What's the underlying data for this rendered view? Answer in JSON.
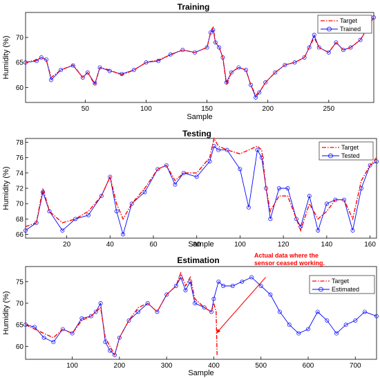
{
  "figure": {
    "description_free": true
  },
  "chart_data": [
    {
      "type": "line",
      "title": "Training",
      "xlabel": "Sample",
      "ylabel": "Humidity (%)",
      "xlim": [
        1,
        287
      ],
      "ylim": [
        57,
        75
      ],
      "xticks": [
        50,
        100,
        150,
        200,
        250
      ],
      "yticks": [
        60,
        65,
        70
      ],
      "legend_position": "top-right",
      "grid": false,
      "series": [
        {
          "name": "Target",
          "style": "dashdot",
          "color": "#ff0000",
          "markers": false,
          "x": [
            1,
            10,
            14,
            18,
            22,
            30,
            40,
            48,
            52,
            58,
            62,
            70,
            80,
            90,
            100,
            110,
            120,
            130,
            140,
            150,
            153,
            155,
            157,
            160,
            163,
            166,
            170,
            176,
            182,
            186,
            190,
            193,
            198,
            206,
            214,
            222,
            230,
            234,
            238,
            242,
            250,
            256,
            262,
            268,
            276,
            282,
            287
          ],
          "y": [
            65,
            65.5,
            66,
            65.5,
            62,
            63.5,
            64.5,
            62,
            63,
            60.5,
            64,
            63.5,
            62.5,
            63.5,
            65,
            65.5,
            66.5,
            67.5,
            67,
            68,
            71,
            72,
            69,
            68,
            66,
            60.5,
            63,
            64,
            63.5,
            60.5,
            58.5,
            59,
            61,
            63,
            64.5,
            65,
            66,
            68,
            70,
            68,
            67,
            69,
            67.5,
            68,
            69.5,
            72,
            74
          ]
        },
        {
          "name": "Trained",
          "style": "solid",
          "color": "#0000ff",
          "markers": true,
          "x": [
            1,
            10,
            14,
            18,
            22,
            30,
            40,
            48,
            52,
            58,
            62,
            70,
            80,
            90,
            100,
            110,
            120,
            130,
            140,
            150,
            153,
            155,
            157,
            160,
            163,
            166,
            170,
            176,
            182,
            186,
            190,
            193,
            198,
            206,
            214,
            222,
            230,
            234,
            238,
            242,
            250,
            256,
            262,
            268,
            276,
            282,
            287
          ],
          "y": [
            65,
            65.3,
            66,
            65.6,
            61.5,
            63.5,
            64.4,
            62,
            63,
            60.8,
            64,
            63.3,
            62.7,
            63.5,
            65,
            65.3,
            66.6,
            67.5,
            67,
            68,
            71,
            71.5,
            69,
            68,
            66,
            61,
            63,
            64,
            63.5,
            60.5,
            58,
            59,
            61,
            63,
            64.5,
            65,
            66,
            68,
            70.5,
            68,
            67,
            69,
            67.5,
            68,
            69.5,
            72,
            74
          ]
        }
      ]
    },
    {
      "type": "line",
      "title": "Testing",
      "xlabel": "Sample",
      "ylabel": "Humidity (%)",
      "xlim": [
        1,
        163
      ],
      "ylim": [
        65.5,
        78.5
      ],
      "xticks": [
        20,
        40,
        60,
        80,
        100,
        120,
        140,
        160
      ],
      "yticks": [
        66,
        68,
        70,
        72,
        74,
        76,
        78
      ],
      "legend_position": "top-right",
      "grid": false,
      "series": [
        {
          "name": "Target",
          "style": "dashdot",
          "color": "#ff0000",
          "markers": false,
          "x": [
            1,
            6,
            9,
            12,
            18,
            24,
            30,
            36,
            40,
            43,
            46,
            50,
            56,
            62,
            66,
            70,
            74,
            80,
            86,
            88,
            90,
            94,
            100,
            104,
            108,
            110,
            112,
            114,
            118,
            122,
            126,
            128,
            132,
            136,
            140,
            144,
            148,
            152,
            156,
            160,
            163
          ],
          "y": [
            67,
            67.5,
            72,
            69,
            67.5,
            68,
            69,
            71,
            73.5,
            70,
            68,
            70,
            72,
            74.5,
            75,
            73,
            74,
            74,
            76,
            78.5,
            77.5,
            77,
            76.5,
            77,
            77.5,
            77,
            72,
            69,
            71,
            71,
            68,
            66.5,
            70,
            68,
            69,
            70.5,
            70.5,
            68,
            73,
            75,
            76
          ]
        },
        {
          "name": "Tested",
          "style": "solid",
          "color": "#0000ff",
          "markers": true,
          "x": [
            1,
            6,
            9,
            12,
            18,
            24,
            30,
            36,
            40,
            43,
            46,
            50,
            56,
            62,
            66,
            70,
            74,
            80,
            86,
            88,
            90,
            94,
            100,
            104,
            108,
            110,
            112,
            114,
            118,
            122,
            126,
            128,
            132,
            136,
            140,
            144,
            148,
            152,
            156,
            160,
            163
          ],
          "y": [
            66.5,
            67.5,
            71.5,
            69,
            66.5,
            68,
            68.5,
            71,
            73.5,
            69,
            66,
            70,
            71.5,
            74.5,
            75,
            72.5,
            74,
            73.5,
            75.5,
            77.5,
            77,
            77,
            74.5,
            69.5,
            77,
            76,
            72,
            68,
            72,
            72,
            68,
            67,
            71,
            66.5,
            70,
            70.5,
            70.5,
            66.5,
            72,
            75,
            75.5
          ]
        }
      ]
    },
    {
      "type": "line",
      "title": "Estimation",
      "xlabel": "Sample",
      "ylabel": "Humidity (%)",
      "xlim": [
        1,
        745
      ],
      "ylim": [
        57,
        78.5
      ],
      "xticks": [
        100,
        200,
        300,
        400,
        500,
        600,
        700
      ],
      "yticks": [
        60,
        65,
        70,
        75
      ],
      "legend_position": "top-right",
      "grid": false,
      "annotation": {
        "text_lines": [
          "Actual data where the",
          "sensor ceased working."
        ],
        "color": "#ff0000",
        "arrow_from_x": 510,
        "arrow_from_y": 76,
        "arrow_to_x": 405,
        "arrow_to_y": 63
      },
      "series": [
        {
          "name": "Target",
          "style": "dashdot",
          "color": "#ff0000",
          "markers": false,
          "x": [
            1,
            20,
            40,
            60,
            80,
            100,
            120,
            140,
            150,
            160,
            170,
            180,
            190,
            200,
            220,
            240,
            260,
            280,
            300,
            320,
            330,
            340,
            350,
            360,
            380,
            395,
            400,
            405,
            407
          ],
          "y": [
            65,
            64,
            63,
            62,
            64,
            63,
            66,
            67,
            68,
            69,
            62,
            60,
            58,
            62,
            66,
            69,
            70,
            68,
            72,
            74,
            77,
            74,
            76,
            71,
            69,
            68,
            70,
            68,
            58
          ]
        },
        {
          "name": "Estimated",
          "style": "solid",
          "color": "#0000ff",
          "markers": true,
          "x": [
            1,
            20,
            40,
            60,
            80,
            100,
            120,
            140,
            150,
            160,
            170,
            180,
            190,
            200,
            220,
            240,
            260,
            280,
            300,
            320,
            330,
            340,
            350,
            360,
            380,
            395,
            400,
            410,
            420,
            440,
            460,
            480,
            500,
            520,
            540,
            560,
            580,
            600,
            620,
            640,
            660,
            680,
            700,
            720,
            745
          ],
          "y": [
            65,
            64.5,
            62,
            61,
            64,
            63,
            66.5,
            67,
            68,
            70,
            61,
            59,
            58,
            62,
            66,
            68,
            70,
            68,
            72,
            74,
            76,
            73,
            75,
            70,
            69,
            68,
            71,
            75,
            74,
            74,
            75,
            76,
            74,
            72,
            68,
            65,
            63,
            64,
            68,
            66,
            63,
            65,
            66,
            68,
            67
          ]
        }
      ]
    }
  ]
}
